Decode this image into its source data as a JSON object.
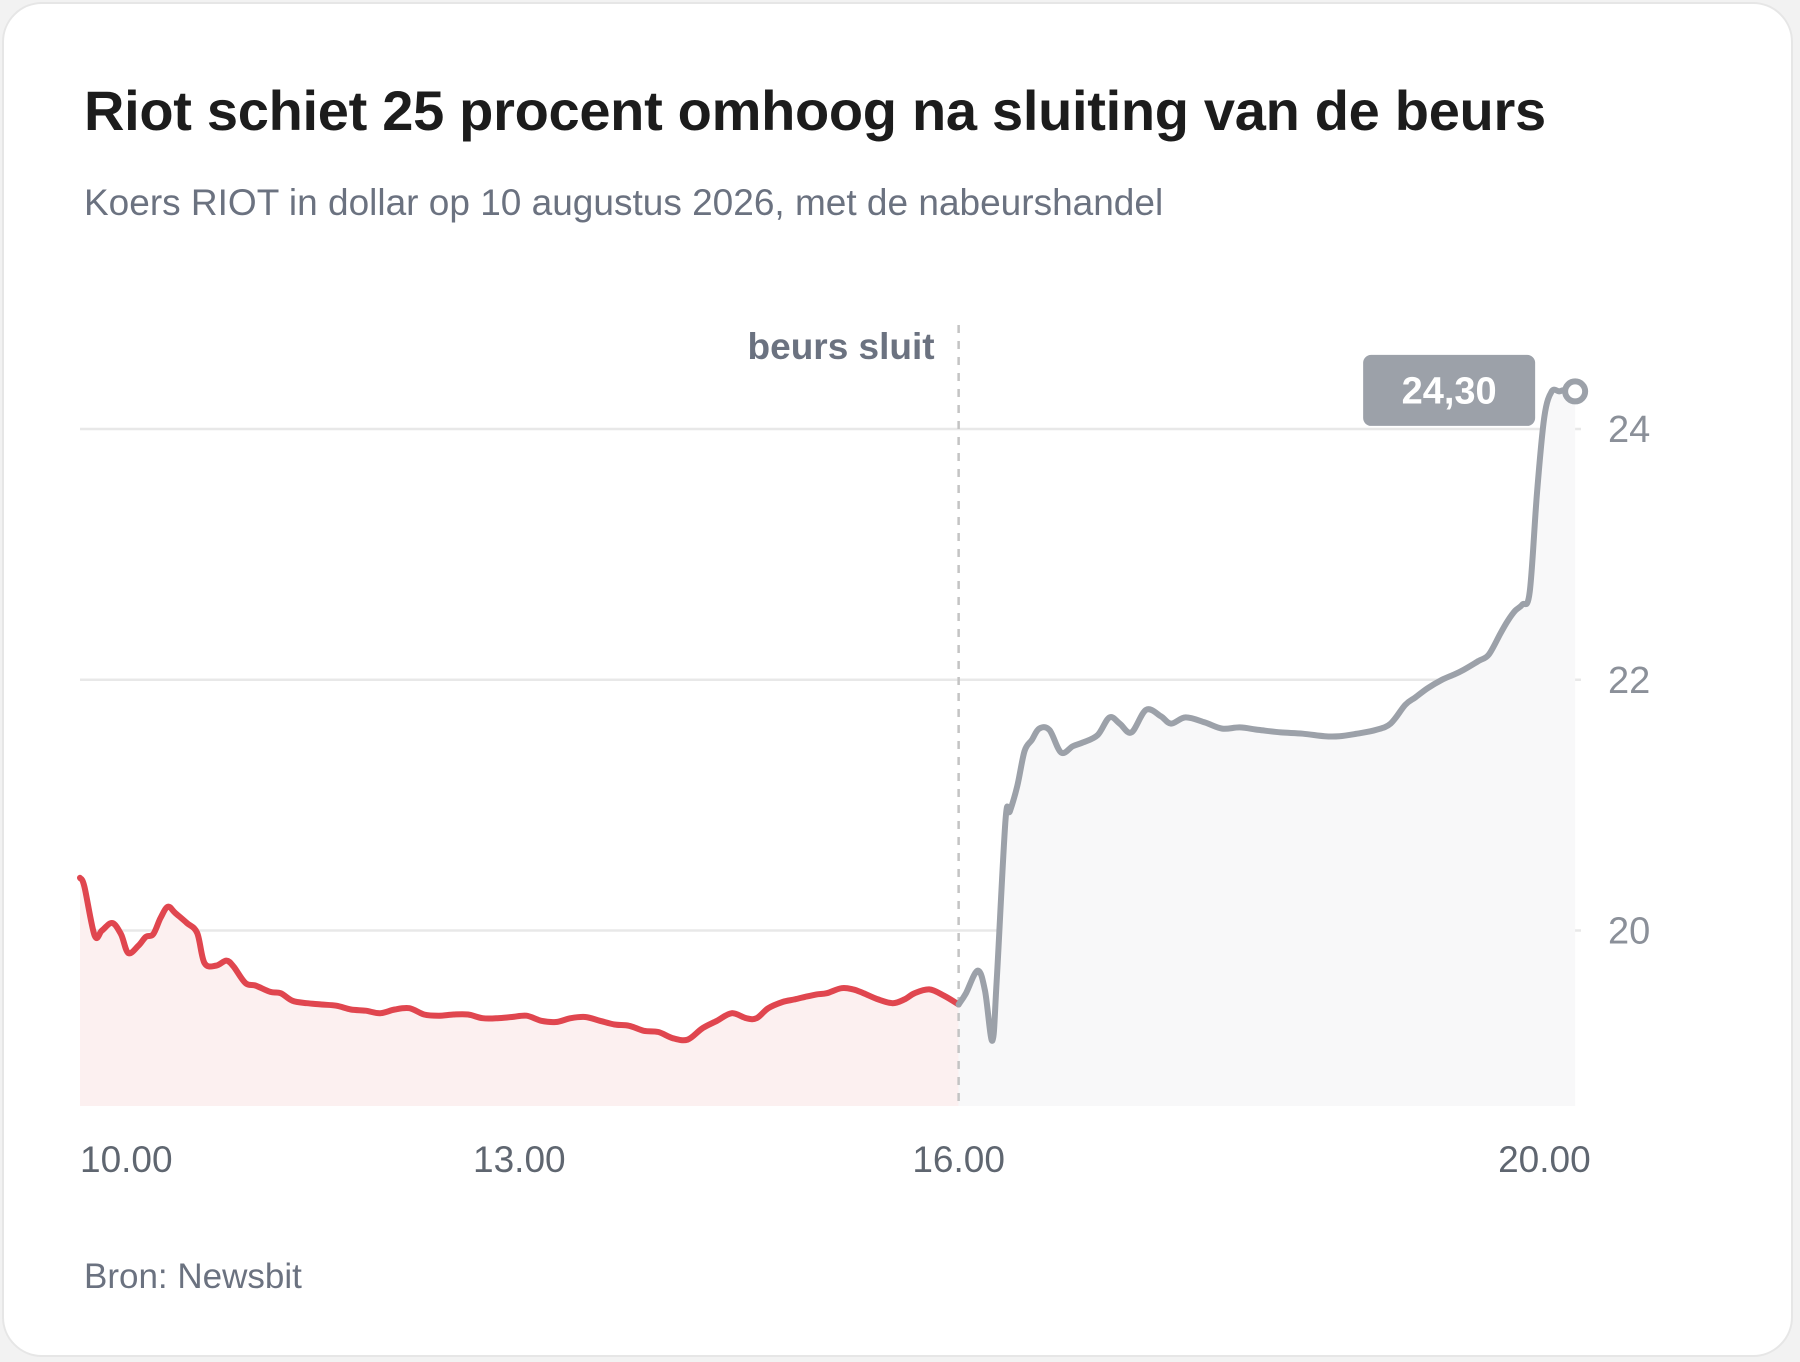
{
  "header": {
    "title": "Riot schiet 25 procent omhoog na sluiting van de beurs",
    "subtitle": "Koers RIOT in dollar op 10 augustus 2026, met de nabeurshandel"
  },
  "footer": {
    "source": "Bron: Newsbit"
  },
  "colors": {
    "regular_line": "#e0464f",
    "regular_fill": "#fcf0f0",
    "afterhours_line": "#9ca1a9",
    "afterhours_fill": "#f8f8f9",
    "grid": "#e8e8e8",
    "label_bg": "#9ca1a9"
  },
  "chart_data": {
    "type": "line",
    "title": "Riot schiet 25 procent omhoog na sluiting van de beurs",
    "subtitle": "Koers RIOT in dollar op 10 augustus 2026, met de nabeurshandel",
    "x_unit": "hour of day",
    "xlim": [
      10.0,
      20.25
    ],
    "ylim": [
      18.6,
      24.75
    ],
    "y_ticks": [
      20,
      22,
      24
    ],
    "y_tick_labels": [
      "20",
      "22",
      "24"
    ],
    "x_ticks": [
      10,
      13,
      16,
      20
    ],
    "x_tick_labels": [
      "10.00",
      "13.00",
      "16.00",
      "20.00"
    ],
    "y_axis_side": "right",
    "grid": "horizontal",
    "annotation": {
      "x": 16.0,
      "label": "beurs sluit"
    },
    "end_label": "24,30",
    "series": [
      {
        "segment": "regular",
        "x": [
          10.0,
          10.03,
          10.1,
          10.15,
          10.22,
          10.28,
          10.33,
          10.4,
          10.45,
          10.5,
          10.55,
          10.6,
          10.65,
          10.73,
          10.8,
          10.85,
          10.93,
          11.0,
          11.05,
          11.13,
          11.2,
          11.3,
          11.37,
          11.45,
          11.55,
          11.65,
          11.75,
          11.85,
          11.95,
          12.05,
          12.15,
          12.25,
          12.35,
          12.45,
          12.55,
          12.65,
          12.75,
          12.85,
          12.95,
          13.05,
          13.15,
          13.25,
          13.35,
          13.45,
          13.55,
          13.65,
          13.75,
          13.85,
          13.95,
          14.05,
          14.15,
          14.25,
          14.35,
          14.45,
          14.55,
          14.62,
          14.7,
          14.8,
          14.88,
          14.95,
          15.03,
          15.1,
          15.2,
          15.28,
          15.35,
          15.45,
          15.55,
          15.63,
          15.7,
          15.8,
          15.9,
          16.0
        ],
        "y": [
          20.42,
          20.35,
          19.96,
          20.0,
          20.06,
          19.97,
          19.82,
          19.88,
          19.95,
          19.97,
          20.1,
          20.19,
          20.14,
          20.06,
          19.98,
          19.74,
          19.72,
          19.76,
          19.71,
          19.58,
          19.56,
          19.51,
          19.5,
          19.44,
          19.42,
          19.41,
          19.4,
          19.37,
          19.36,
          19.34,
          19.37,
          19.38,
          19.33,
          19.32,
          19.33,
          19.33,
          19.3,
          19.3,
          19.31,
          19.32,
          19.28,
          19.27,
          19.3,
          19.31,
          19.28,
          19.25,
          19.24,
          19.2,
          19.19,
          19.14,
          19.13,
          19.22,
          19.28,
          19.34,
          19.3,
          19.3,
          19.38,
          19.43,
          19.45,
          19.47,
          19.49,
          19.5,
          19.54,
          19.53,
          19.5,
          19.45,
          19.42,
          19.45,
          19.5,
          19.53,
          19.48,
          19.41
        ]
      },
      {
        "segment": "after-hours",
        "x": [
          16.0,
          16.05,
          16.13,
          16.18,
          16.23,
          16.26,
          16.32,
          16.35,
          16.4,
          16.45,
          16.5,
          16.55,
          16.62,
          16.7,
          16.78,
          16.85,
          16.95,
          17.03,
          17.1,
          17.18,
          17.28,
          17.38,
          17.45,
          17.55,
          17.68,
          17.8,
          17.92,
          18.05,
          18.2,
          18.35,
          18.5,
          18.6,
          18.72,
          18.85,
          18.95,
          19.05,
          19.12,
          19.2,
          19.3,
          19.38,
          19.45,
          19.55,
          19.62,
          19.7,
          19.75,
          19.8,
          19.85,
          19.9,
          19.95,
          20.0,
          20.05,
          20.1,
          20.13,
          20.15,
          20.18,
          20.21
        ],
        "y": [
          19.41,
          19.5,
          19.68,
          19.52,
          19.12,
          19.6,
          20.88,
          20.95,
          21.15,
          21.43,
          21.52,
          21.61,
          21.6,
          21.42,
          21.47,
          21.5,
          21.56,
          21.7,
          21.65,
          21.58,
          21.76,
          21.71,
          21.65,
          21.7,
          21.66,
          21.61,
          21.62,
          21.6,
          21.58,
          21.57,
          21.55,
          21.55,
          21.57,
          21.6,
          21.65,
          21.8,
          21.86,
          21.93,
          22.0,
          22.04,
          22.08,
          22.15,
          22.2,
          22.37,
          22.47,
          22.55,
          22.6,
          22.7,
          23.5,
          24.1,
          24.3,
          24.3,
          24.31,
          24.3,
          24.3,
          24.3
        ]
      }
    ]
  }
}
